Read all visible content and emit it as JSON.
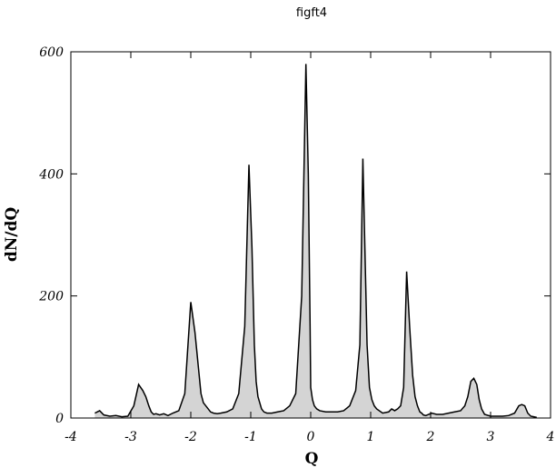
{
  "chart_data": {
    "type": "area",
    "title": "figft4",
    "xlabel": "Q",
    "ylabel": "dN/dQ",
    "xlim": [
      -4,
      4
    ],
    "ylim": [
      0,
      600
    ],
    "xticks": [
      "-4",
      "-3",
      "-2",
      "-1",
      "0",
      "1",
      "2",
      "3",
      "4"
    ],
    "yticks": [
      "0",
      "200",
      "400",
      "600"
    ],
    "grid": false,
    "fill_color": "#d4d4d4",
    "line_color": "#000000",
    "x": [
      -3.6,
      -3.56,
      -3.52,
      -3.45,
      -3.35,
      -3.25,
      -3.15,
      -3.05,
      -2.95,
      -2.87,
      -2.8,
      -2.75,
      -2.7,
      -2.66,
      -2.62,
      -2.58,
      -2.52,
      -2.45,
      -2.38,
      -2.3,
      -2.2,
      -2.1,
      -2.0,
      -1.93,
      -1.87,
      -1.83,
      -1.79,
      -1.75,
      -1.71,
      -1.67,
      -1.62,
      -1.56,
      -1.5,
      -1.4,
      -1.3,
      -1.2,
      -1.1,
      -1.03,
      -0.98,
      -0.94,
      -0.91,
      -0.88,
      -0.85,
      -0.82,
      -0.78,
      -0.73,
      -0.65,
      -0.55,
      -0.45,
      -0.35,
      -0.25,
      -0.15,
      -0.08,
      -0.04,
      -0.01,
      0.0,
      0.03,
      0.06,
      0.1,
      0.15,
      0.25,
      0.35,
      0.45,
      0.55,
      0.65,
      0.75,
      0.82,
      0.87,
      0.91,
      0.94,
      0.98,
      1.02,
      1.06,
      1.1,
      1.2,
      1.3,
      1.35,
      1.4,
      1.45,
      1.5,
      1.55,
      1.6,
      1.65,
      1.7,
      1.74,
      1.78,
      1.82,
      1.85,
      1.88,
      1.92,
      1.97,
      2.02,
      2.1,
      2.2,
      2.3,
      2.4,
      2.5,
      2.57,
      2.62,
      2.67,
      2.72,
      2.77,
      2.81,
      2.85,
      2.9,
      3.0,
      3.1,
      3.2,
      3.3,
      3.4,
      3.47,
      3.52,
      3.57,
      3.62,
      3.67,
      3.72,
      3.77
    ],
    "y": [
      8,
      10,
      12,
      5,
      3,
      4,
      2,
      3,
      20,
      55,
      45,
      35,
      20,
      10,
      6,
      7,
      5,
      7,
      4,
      8,
      12,
      40,
      190,
      140,
      80,
      40,
      25,
      20,
      15,
      10,
      8,
      7,
      8,
      10,
      15,
      40,
      150,
      415,
      280,
      120,
      60,
      35,
      25,
      15,
      10,
      8,
      8,
      10,
      12,
      20,
      40,
      200,
      580,
      400,
      150,
      50,
      30,
      20,
      15,
      12,
      10,
      10,
      10,
      12,
      20,
      45,
      120,
      425,
      250,
      120,
      50,
      30,
      20,
      15,
      8,
      10,
      15,
      12,
      15,
      20,
      50,
      240,
      150,
      70,
      35,
      20,
      10,
      8,
      5,
      4,
      6,
      8,
      6,
      6,
      8,
      10,
      12,
      20,
      35,
      60,
      65,
      55,
      30,
      15,
      6,
      3,
      3,
      3,
      4,
      8,
      20,
      22,
      20,
      8,
      3,
      2,
      1
    ]
  }
}
